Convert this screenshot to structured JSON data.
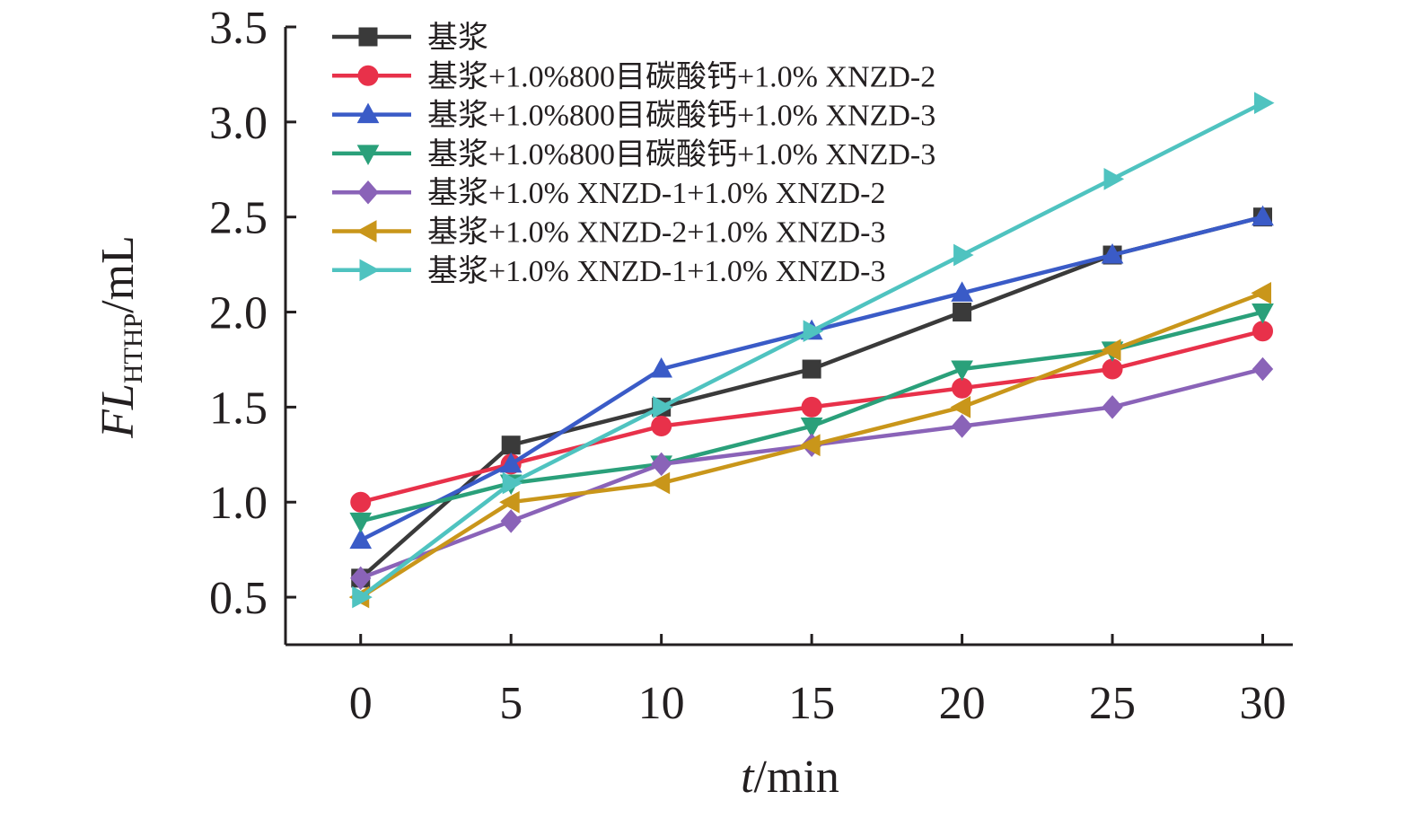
{
  "chart_data": {
    "type": "line",
    "x": [
      0,
      5,
      10,
      15,
      20,
      25,
      30
    ],
    "xlabel": {
      "italic": "t",
      "rest": "/min"
    },
    "ylabel": {
      "italic": "FL",
      "sub": "HTHP",
      "rest": "/mL"
    },
    "xlim": [
      -2.5,
      31
    ],
    "ylim": [
      0.25,
      3.5
    ],
    "xticks": [
      0,
      5,
      10,
      15,
      20,
      25,
      30
    ],
    "xtick_labels": [
      "0",
      "5",
      "10",
      "15",
      "20",
      "25",
      "30"
    ],
    "yticks": [
      0.5,
      1.0,
      1.5,
      2.0,
      2.5,
      3.0,
      3.5
    ],
    "ytick_labels": [
      "0.5",
      "1.0",
      "1.5",
      "2.0",
      "2.5",
      "3.0",
      "3.5"
    ],
    "grid": false,
    "legend_position": "top-left",
    "series": [
      {
        "name": "基浆",
        "color": "#3a3a3a",
        "marker": "square",
        "values": [
          0.6,
          1.3,
          1.5,
          1.7,
          2.0,
          2.3,
          2.5
        ]
      },
      {
        "name": "基浆+1.0%800目碳酸钙+1.0% XNZD-2",
        "color": "#e8314a",
        "marker": "circle",
        "values": [
          1.0,
          1.2,
          1.4,
          1.5,
          1.6,
          1.7,
          1.9
        ]
      },
      {
        "name": "基浆+1.0%800目碳酸钙+1.0% XNZD-3",
        "color": "#3a5bc7",
        "marker": "triangle-up",
        "values": [
          0.8,
          1.2,
          1.7,
          1.9,
          2.1,
          2.3,
          2.5
        ]
      },
      {
        "name": "基浆+1.0%800目碳酸钙+1.0% XNZD-3",
        "color": "#2aa07a",
        "marker": "triangle-down",
        "values": [
          0.9,
          1.1,
          1.2,
          1.4,
          1.7,
          1.8,
          2.0
        ]
      },
      {
        "name": "基浆+1.0% XNZD-1+1.0% XNZD-2",
        "color": "#8a63b8",
        "marker": "diamond",
        "values": [
          0.6,
          0.9,
          1.2,
          1.3,
          1.4,
          1.5,
          1.7
        ]
      },
      {
        "name": "基浆+1.0% XNZD-2+1.0% XNZD-3",
        "color": "#c9961a",
        "marker": "triangle-left",
        "values": [
          0.5,
          1.0,
          1.1,
          1.3,
          1.5,
          1.8,
          2.1
        ]
      },
      {
        "name": "基浆+1.0% XNZD-1+1.0% XNZD-3",
        "color": "#4fc3c0",
        "marker": "triangle-right",
        "values": [
          0.5,
          1.1,
          1.5,
          1.9,
          2.3,
          2.7,
          3.1
        ]
      }
    ]
  }
}
